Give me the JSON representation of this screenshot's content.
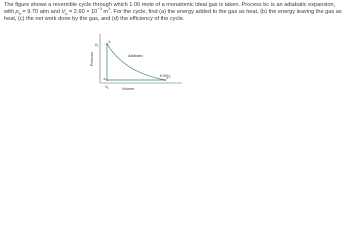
{
  "problem": [
    "The figure shows a reversible cycle through which 1.00 mole of a monatomic ideal gas is taken. Process bc is an adiabatic expansion, with ",
    "p",
    "b",
    " = 9.70 atm and ",
    "V",
    "b",
    " = 2.60 × 10",
    "−3",
    " m",
    "3",
    ". For the cycle, find (a) the energy added to the gas as heat, (b) the energy leaving the gas as heat, (c) the net work done by the gas, and (d) the efficiency of the cycle."
  ],
  "figure": {
    "pressure_axis": "Pressure",
    "volume_axis": "Volume",
    "pb": [
      "p",
      "b"
    ],
    "point_a": "a",
    "point_b": "b",
    "point_c": "c",
    "adiabatic": "Adiabatic",
    "vb": [
      "V",
      "b"
    ],
    "v8": [
      "8.00V",
      "b"
    ]
  }
}
